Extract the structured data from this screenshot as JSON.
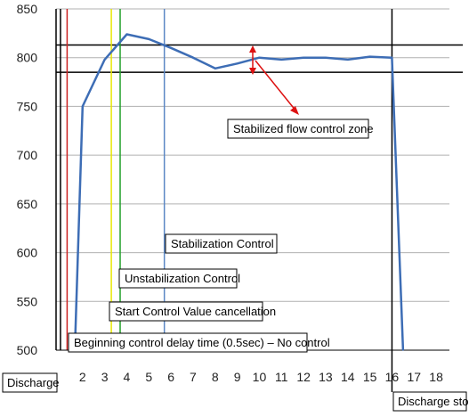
{
  "chart_data": {
    "type": "line",
    "x": [
      1.65,
      2,
      3,
      4,
      5,
      6,
      7,
      8,
      9,
      10,
      11,
      12,
      13,
      14,
      15,
      16,
      16.5
    ],
    "y": [
      500,
      750,
      798,
      824,
      819,
      810,
      800,
      789,
      794,
      800,
      798,
      800,
      800,
      798,
      801,
      800,
      500
    ],
    "xlim": [
      0.8,
      18.6
    ],
    "ylim": [
      500,
      850
    ],
    "x_ticks": [
      "2",
      "3",
      "4",
      "5",
      "6",
      "7",
      "8",
      "9",
      "10",
      "11",
      "12",
      "13",
      "14",
      "15",
      "16",
      "17",
      "18"
    ],
    "y_ticks": [
      "500",
      "550",
      "600",
      "650",
      "700",
      "750",
      "800",
      "850"
    ],
    "band": {
      "upper": 813,
      "lower": 785
    },
    "markers": [
      {
        "x": 1.0,
        "color": "#000000"
      },
      {
        "x": 1.3,
        "color": "#cc2222"
      },
      {
        "x": 3.3,
        "color": "#e8e800"
      },
      {
        "x": 3.7,
        "color": "#22a02a"
      },
      {
        "x": 5.7,
        "color": "#5b87c5"
      },
      {
        "x": 16.0,
        "color": "#000000"
      }
    ],
    "series_color": "#3d6db5",
    "annotations": {
      "stabilized_zone": "Stabilized flow control zone",
      "stabilization_control": "Stabilization Control",
      "unstabilization_control": "Unstabilization Control",
      "start_control": "Start Control Value cancellation",
      "beginning_delay": "Beginning control delay time (0.5sec) – No control",
      "discharge": "Discharge",
      "discharge_stop": "Discharge stop"
    },
    "arrow_color": "#dd1111"
  }
}
